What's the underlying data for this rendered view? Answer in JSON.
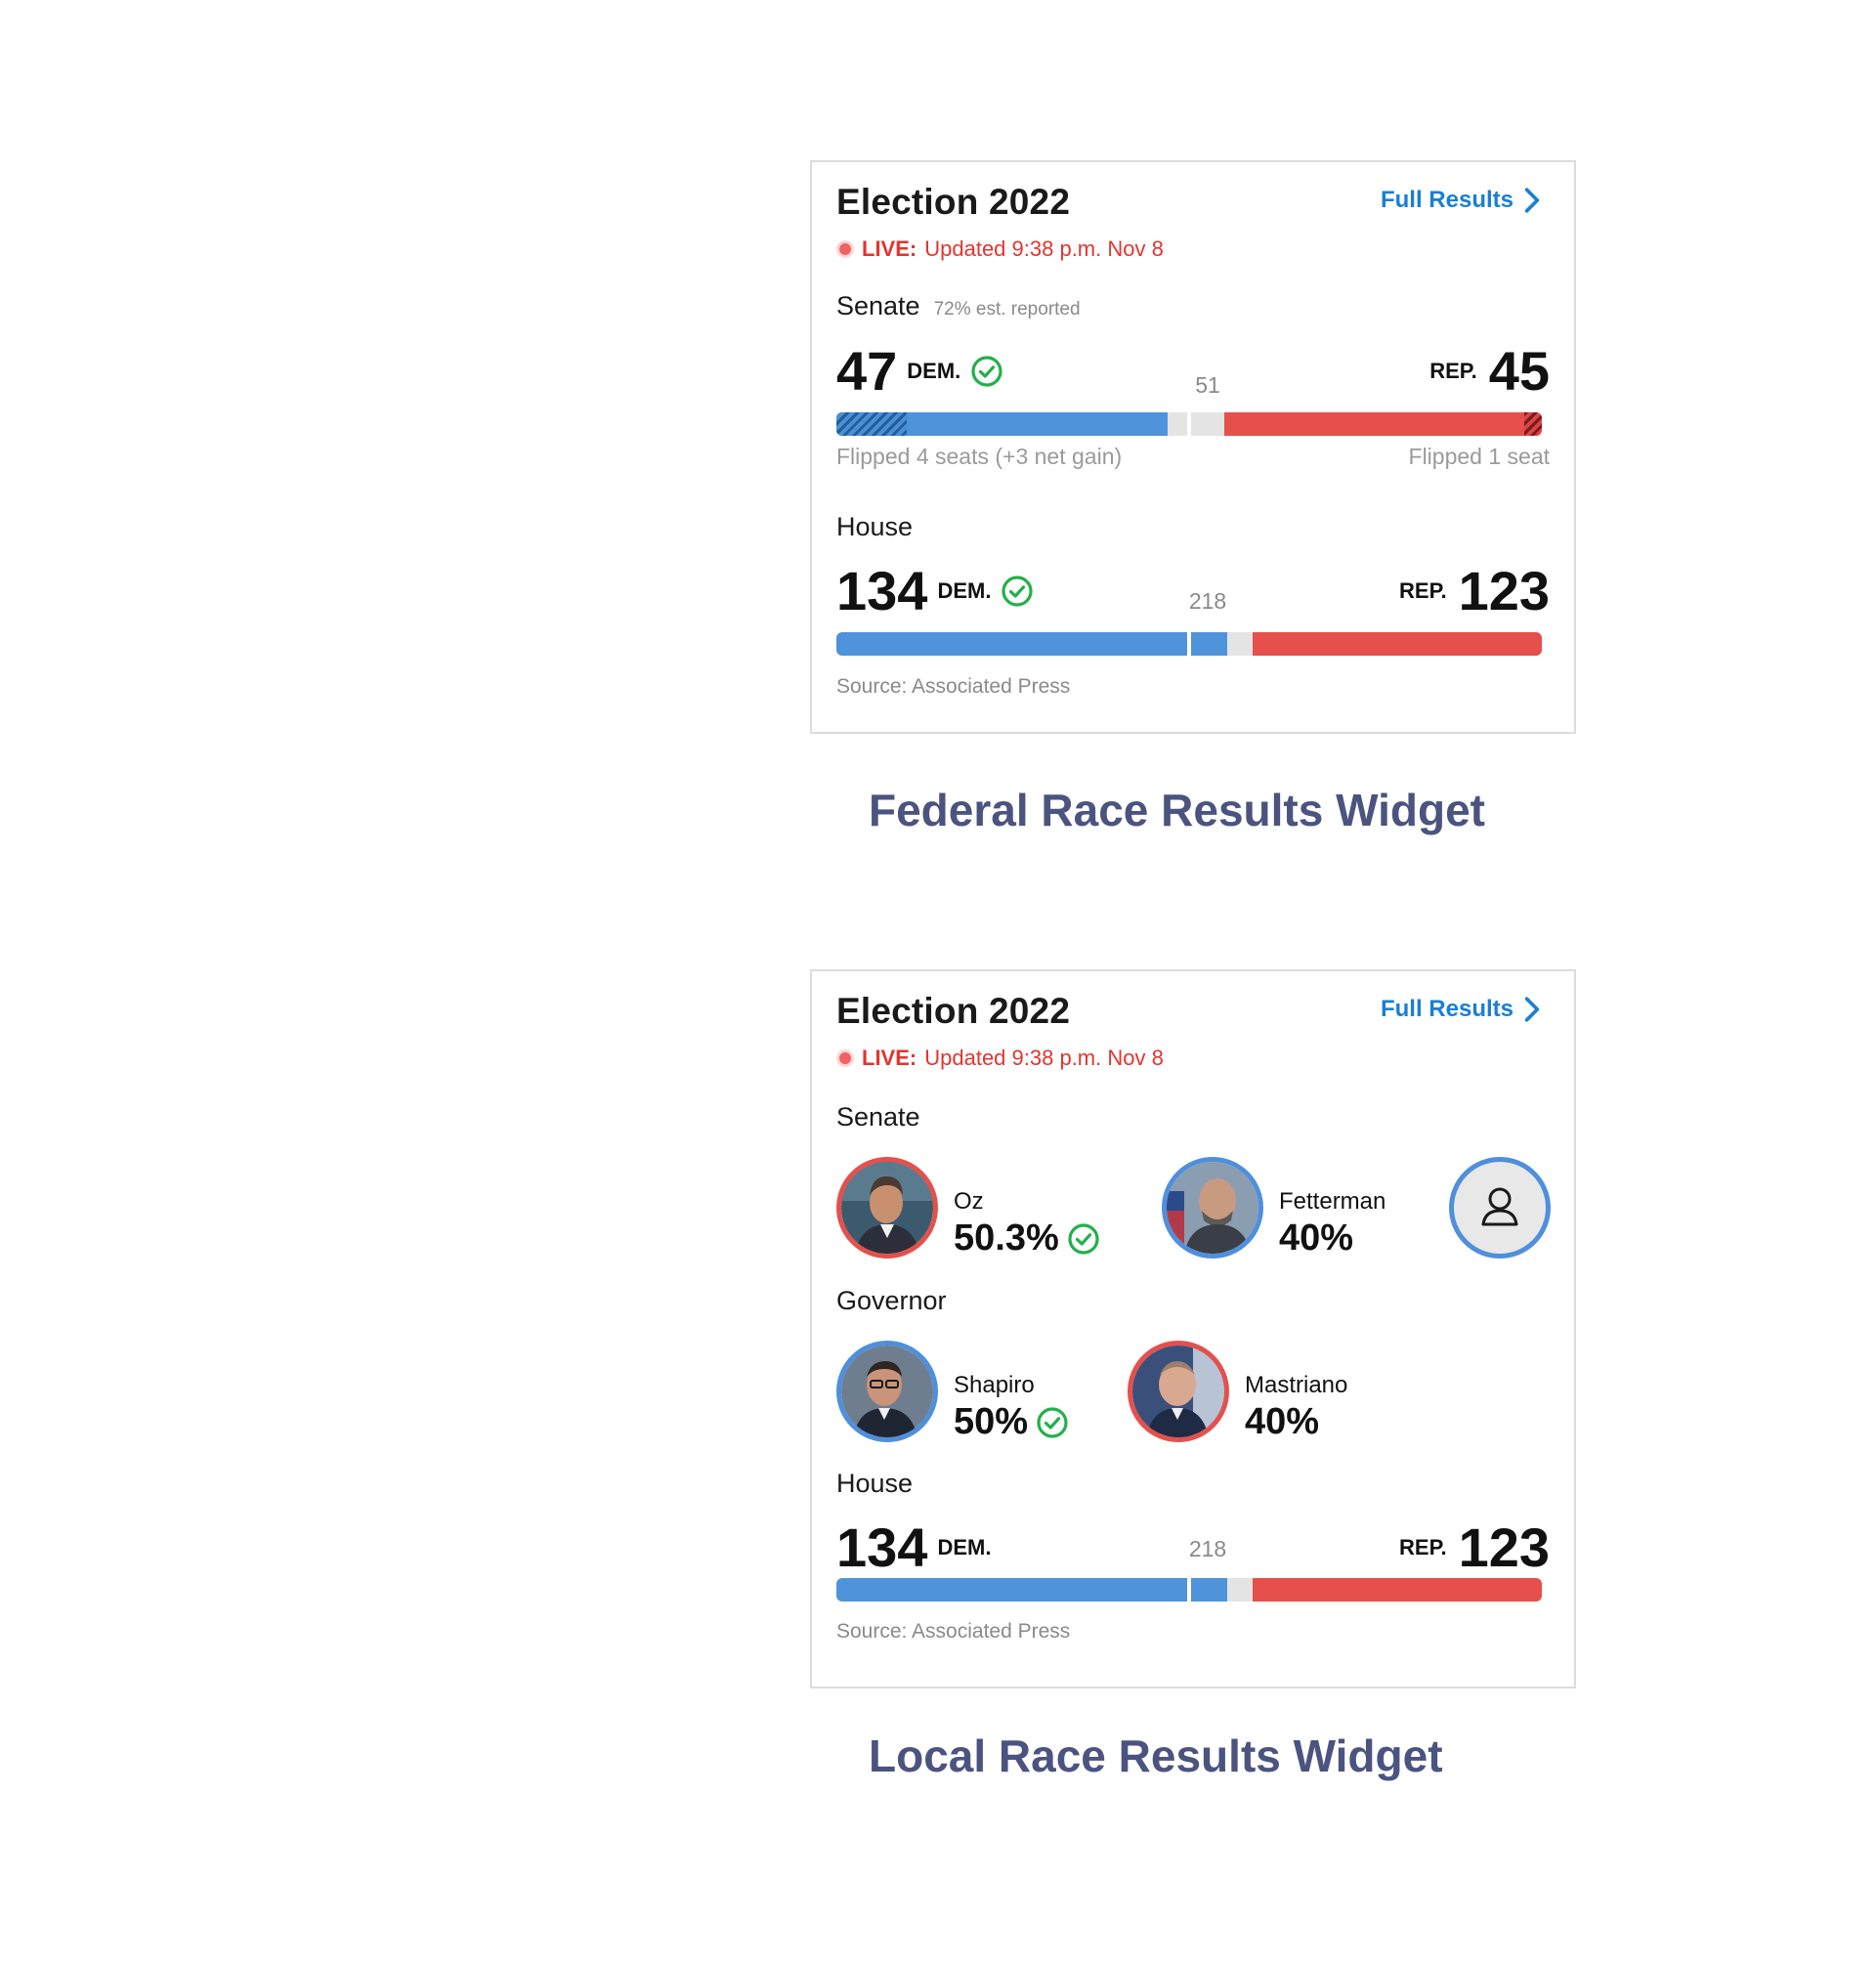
{
  "colors": {
    "dem": "#4f93da",
    "rep": "#e5504c",
    "undecided": "#e4e4e4",
    "accent_link": "#1a7fd4",
    "live": "#e5342f",
    "check": "#22b04b",
    "caption": "#4b5480"
  },
  "federal_widget": {
    "title": "Election 2022",
    "full_results_label": "Full Results",
    "live_label": "LIVE:",
    "updated_text": "Updated 9:38 p.m. Nov 8",
    "senate": {
      "label": "Senate",
      "reported": "72% est. reported",
      "dem_seats": "47",
      "dem_label": "DEM.",
      "rep_seats": "45",
      "rep_label": "REP.",
      "threshold": "51",
      "dem_flip_note": "Flipped 4 seats (+3 net gain)",
      "rep_flip_note": "Flipped 1 seat",
      "total_seats": 100,
      "dem_value": 47,
      "rep_value": 45,
      "dem_flipped": 4,
      "rep_flipped": 1,
      "dem_winner_icon": "check-circle-icon"
    },
    "house": {
      "label": "House",
      "dem_seats": "134",
      "dem_label": "DEM.",
      "rep_seats": "123",
      "rep_label": "REP.",
      "threshold": "218",
      "total_seats": 435,
      "dem_value": 134,
      "rep_value": 123,
      "dem_winner_icon": "check-circle-icon"
    },
    "source": "Source: Associated Press"
  },
  "federal_caption": "Federal Race Results Widget",
  "local_widget": {
    "title": "Election 2022",
    "full_results_label": "Full Results",
    "live_label": "LIVE:",
    "updated_text": "Updated 9:38 p.m. Nov 8",
    "senate": {
      "label": "Senate",
      "candidates": [
        {
          "name": "Oz",
          "pct": "50.3%",
          "party": "rep",
          "winner": true
        },
        {
          "name": "Fetterman",
          "pct": "40%",
          "party": "dem",
          "winner": false
        }
      ],
      "placeholder_icon": "person-icon"
    },
    "governor": {
      "label": "Governor",
      "candidates": [
        {
          "name": "Shapiro",
          "pct": "50%",
          "party": "dem",
          "winner": true
        },
        {
          "name": "Mastriano",
          "pct": "40%",
          "party": "rep",
          "winner": false
        }
      ]
    },
    "house": {
      "label": "House",
      "dem_seats": "134",
      "dem_label": "DEM.",
      "rep_seats": "123",
      "rep_label": "REP.",
      "threshold": "218",
      "total_seats": 435,
      "dem_value": 134,
      "rep_value": 123
    },
    "source": "Source: Associated Press"
  },
  "local_caption": "Local Race Results Widget"
}
